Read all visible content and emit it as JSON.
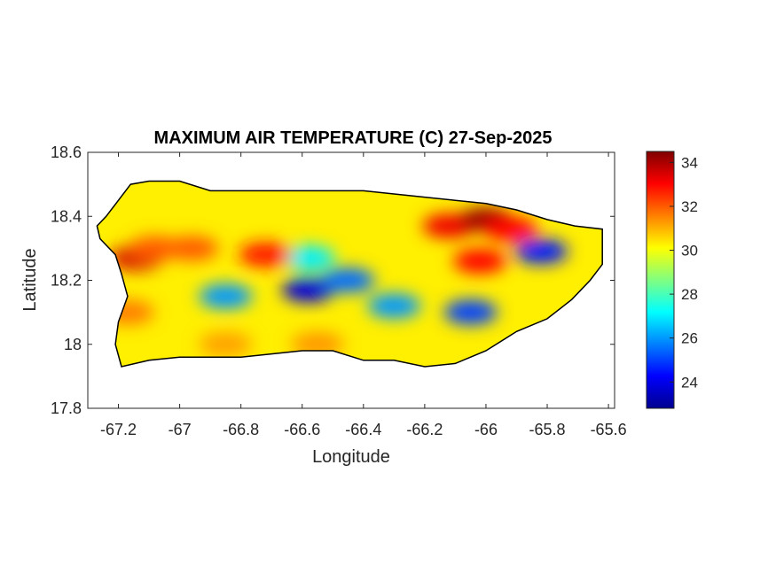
{
  "title": "MAXIMUM AIR TEMPERATURE (C) 27-Sep-2025",
  "xlabel": "Longitude",
  "ylabel": "Latitude",
  "x_axis": {
    "range": [
      -67.3,
      -65.58
    ],
    "ticks": [
      -67.2,
      -67,
      -66.8,
      -66.6,
      -66.4,
      -66.2,
      -66,
      -65.8,
      -65.6
    ],
    "tick_labels": [
      "-67.2",
      "-67",
      "-66.8",
      "-66.6",
      "-66.4",
      "-66.2",
      "-66",
      "-65.8",
      "-65.6"
    ]
  },
  "y_axis": {
    "range": [
      17.8,
      18.6
    ],
    "ticks": [
      17.8,
      18,
      18.2,
      18.4,
      18.6
    ],
    "tick_labels": [
      "17.8",
      "18",
      "18.2",
      "18.4",
      "18.6"
    ]
  },
  "colorbar": {
    "colormap": "jet",
    "range": [
      22.8,
      34.5
    ],
    "ticks": [
      24,
      26,
      28,
      30,
      32,
      34
    ],
    "tick_labels": [
      "24",
      "26",
      "28",
      "30",
      "32",
      "34"
    ],
    "colors": [
      "#00008f",
      "#0000ff",
      "#0080ff",
      "#00ffff",
      "#80ff80",
      "#ffff00",
      "#ff8000",
      "#ff0000",
      "#800000"
    ]
  },
  "chart_data": {
    "type": "heatmap",
    "title": "MAXIMUM AIR TEMPERATURE (C) 27-Sep-2025",
    "xlabel": "Longitude",
    "ylabel": "Latitude",
    "xlim": [
      -67.3,
      -65.58
    ],
    "ylim": [
      17.8,
      18.6
    ],
    "value_range": [
      22.8,
      34.5
    ],
    "unit": "C",
    "background_value": 30.3,
    "island_outline": [
      [
        -67.27,
        18.37
      ],
      [
        -67.24,
        18.4
      ],
      [
        -67.2,
        18.45
      ],
      [
        -67.16,
        18.5
      ],
      [
        -67.1,
        18.51
      ],
      [
        -67.0,
        18.51
      ],
      [
        -66.9,
        18.48
      ],
      [
        -66.8,
        18.48
      ],
      [
        -66.7,
        18.48
      ],
      [
        -66.6,
        18.48
      ],
      [
        -66.5,
        18.48
      ],
      [
        -66.4,
        18.48
      ],
      [
        -66.3,
        18.47
      ],
      [
        -66.2,
        18.46
      ],
      [
        -66.1,
        18.45
      ],
      [
        -66.0,
        18.44
      ],
      [
        -65.9,
        18.42
      ],
      [
        -65.8,
        18.39
      ],
      [
        -65.71,
        18.37
      ],
      [
        -65.62,
        18.36
      ],
      [
        -65.62,
        18.25
      ],
      [
        -65.66,
        18.2
      ],
      [
        -65.72,
        18.14
      ],
      [
        -65.8,
        18.08
      ],
      [
        -65.9,
        18.04
      ],
      [
        -66.0,
        17.98
      ],
      [
        -66.1,
        17.94
      ],
      [
        -66.2,
        17.93
      ],
      [
        -66.3,
        17.95
      ],
      [
        -66.4,
        17.95
      ],
      [
        -66.5,
        17.98
      ],
      [
        -66.6,
        17.98
      ],
      [
        -66.7,
        17.97
      ],
      [
        -66.8,
        17.96
      ],
      [
        -66.9,
        17.96
      ],
      [
        -67.0,
        17.96
      ],
      [
        -67.1,
        17.95
      ],
      [
        -67.19,
        17.93
      ],
      [
        -67.21,
        18.0
      ],
      [
        -67.2,
        18.07
      ],
      [
        -67.17,
        18.15
      ],
      [
        -67.19,
        18.22
      ],
      [
        -67.21,
        18.28
      ],
      [
        -67.26,
        18.33
      ]
    ],
    "hotspots": [
      {
        "lon": -67.14,
        "lat": 18.27,
        "value": 33.5
      },
      {
        "lon": -67.08,
        "lat": 18.3,
        "value": 32.0
      },
      {
        "lon": -66.96,
        "lat": 18.3,
        "value": 32.0
      },
      {
        "lon": -66.72,
        "lat": 18.28,
        "value": 32.8
      },
      {
        "lon": -66.12,
        "lat": 18.37,
        "value": 33.2
      },
      {
        "lon": -66.0,
        "lat": 18.39,
        "value": 34.2
      },
      {
        "lon": -65.92,
        "lat": 18.36,
        "value": 33.0
      },
      {
        "lon": -66.02,
        "lat": 18.26,
        "value": 33.0
      },
      {
        "lon": -67.17,
        "lat": 18.1,
        "value": 31.6
      },
      {
        "lon": -66.55,
        "lat": 18.0,
        "value": 31.3
      },
      {
        "lon": -66.85,
        "lat": 18.0,
        "value": 31.2
      }
    ],
    "coolspots": [
      {
        "lon": -66.85,
        "lat": 18.15,
        "value": 26.0
      },
      {
        "lon": -66.58,
        "lat": 18.17,
        "value": 23.8
      },
      {
        "lon": -66.45,
        "lat": 18.2,
        "value": 25.5
      },
      {
        "lon": -66.3,
        "lat": 18.12,
        "value": 26.0
      },
      {
        "lon": -66.05,
        "lat": 18.1,
        "value": 25.0
      },
      {
        "lon": -65.82,
        "lat": 18.29,
        "value": 24.5
      },
      {
        "lon": -66.58,
        "lat": 18.27,
        "value": 27.0
      }
    ]
  }
}
